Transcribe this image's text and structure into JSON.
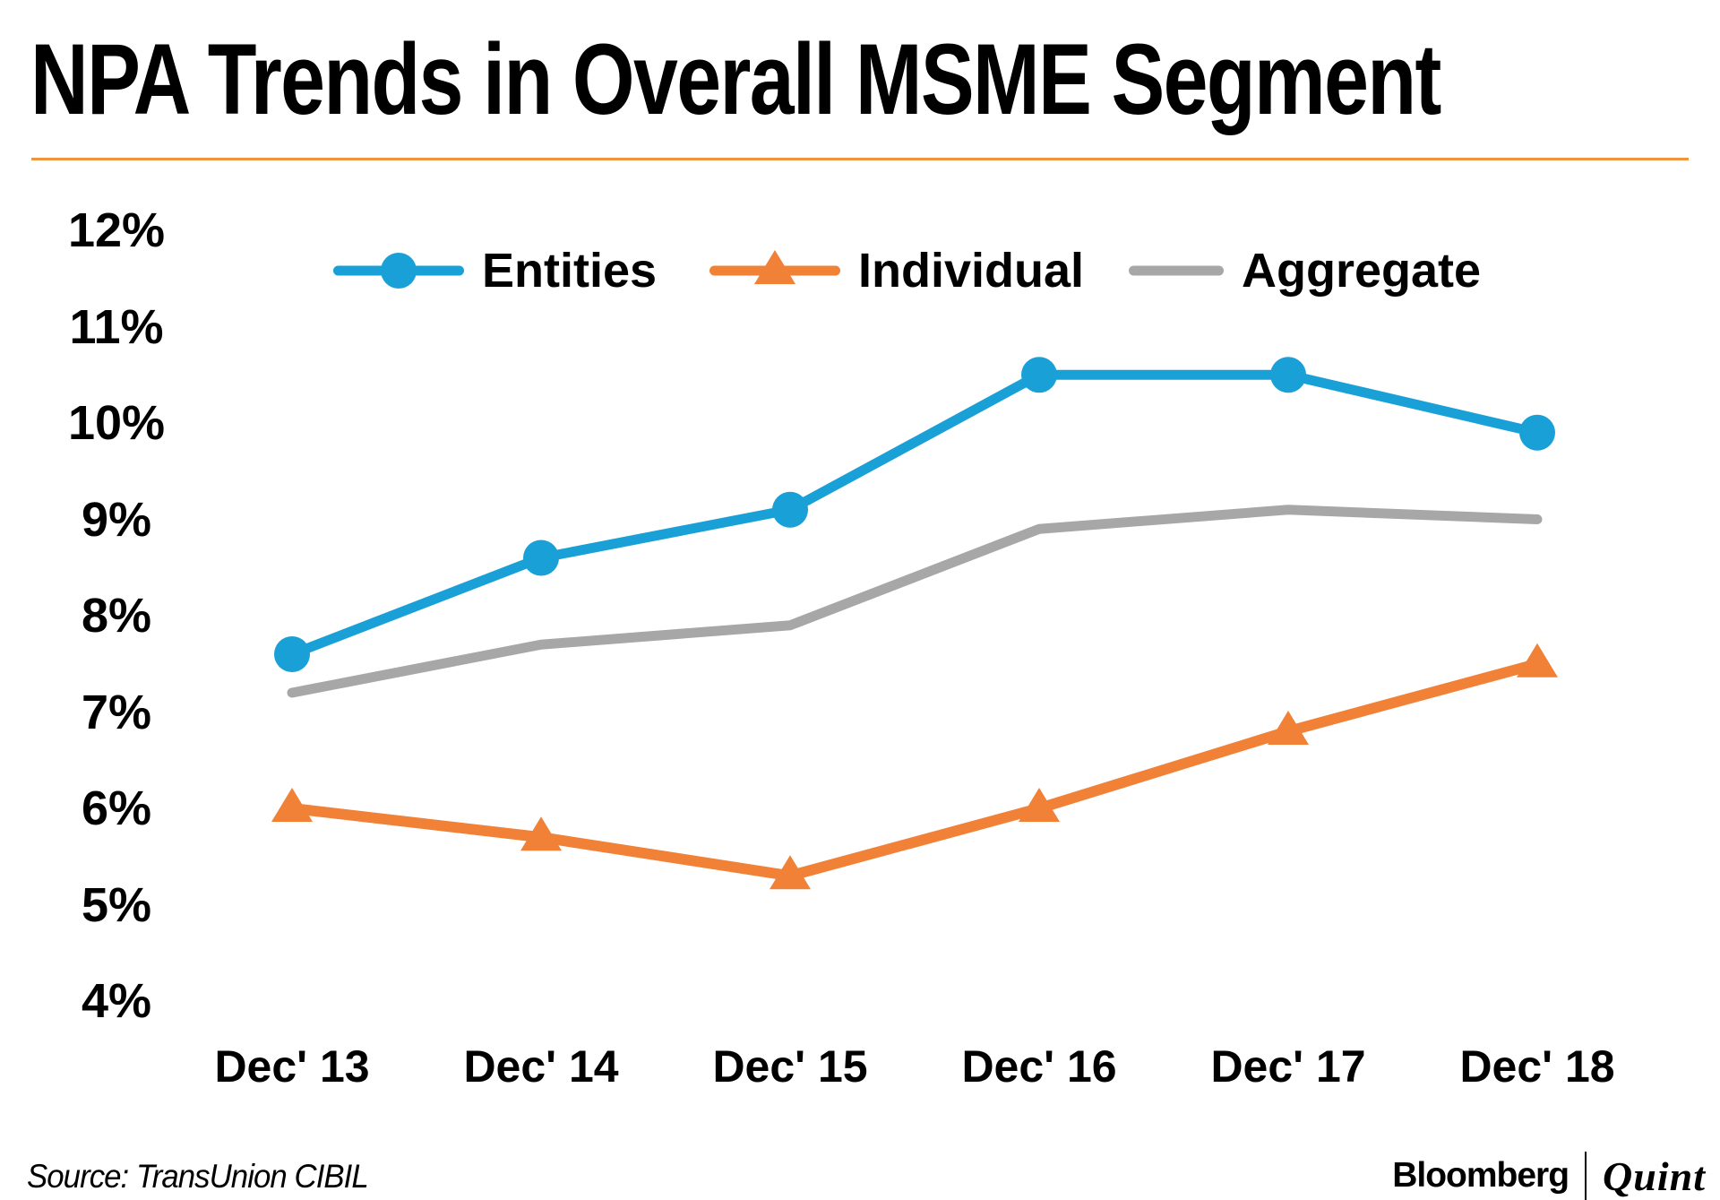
{
  "title": "NPA Trends in Overall MSME Segment",
  "source_note": "Source: TransUnion CIBIL",
  "branding": {
    "bloomberg": "Bloomberg",
    "quint": "Quint"
  },
  "colors": {
    "entities": "#18A0D7",
    "individual": "#F08137",
    "aggregate": "#A7A7A7",
    "title_rule": "#F0953E",
    "text": "#000000",
    "background": "#FFFFFF"
  },
  "chart_data": {
    "type": "line",
    "categories": [
      "Dec' 13",
      "Dec' 14",
      "Dec' 15",
      "Dec' 16",
      "Dec' 17",
      "Dec' 18"
    ],
    "series": [
      {
        "name": "Entities",
        "marker": "circle",
        "color_key": "entities",
        "values": [
          7.6,
          8.6,
          9.1,
          10.5,
          10.5,
          9.9
        ]
      },
      {
        "name": "Individual",
        "marker": "triangle",
        "color_key": "individual",
        "values": [
          6.0,
          5.7,
          5.3,
          6.0,
          6.8,
          7.5
        ]
      },
      {
        "name": "Aggregate",
        "marker": "none",
        "color_key": "aggregate",
        "values": [
          7.2,
          7.7,
          7.9,
          8.9,
          9.1,
          9.0
        ]
      }
    ],
    "y_ticks": [
      {
        "label": "12%",
        "value": 12
      },
      {
        "label": "11%",
        "value": 11
      },
      {
        "label": "10%",
        "value": 10
      },
      {
        "label": "9%",
        "value": 9
      },
      {
        "label": "8%",
        "value": 8
      },
      {
        "label": "7%",
        "value": 7
      },
      {
        "label": "6%",
        "value": 6
      },
      {
        "label": "5%",
        "value": 5
      },
      {
        "label": "4%",
        "value": 4
      }
    ],
    "ylim": [
      4,
      12
    ],
    "xlabel": "",
    "ylabel": "",
    "grid": false,
    "legend_position": "top-center"
  }
}
